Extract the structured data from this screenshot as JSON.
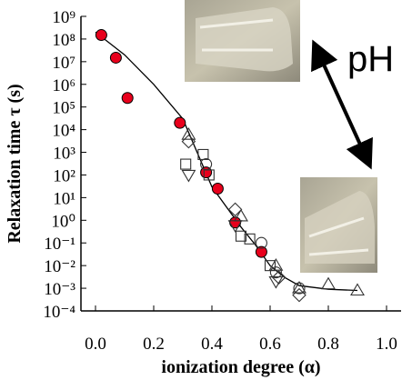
{
  "chart_data": {
    "type": "scatter",
    "xlabel": "ionization degree (α)",
    "ylabel": "Relaxation time τ (s)",
    "xlim": [
      -0.05,
      1.05
    ],
    "xticks": [
      {
        "value": 0,
        "label": "0.0"
      },
      0.2,
      0.4,
      0.6,
      0.8,
      {
        "value": 1,
        "label": "1.0"
      }
    ],
    "ylim": [
      0.0001,
      1000000000
    ],
    "log_y": true,
    "yticks": [
      {
        "value": 1000000000,
        "label": "10⁹"
      },
      {
        "value": 100000000,
        "label": "10⁸"
      },
      {
        "value": 10000000,
        "label": "10⁷"
      },
      {
        "value": 1000000,
        "label": "10⁶"
      },
      {
        "value": 100000,
        "label": "10⁵"
      },
      {
        "value": 10000,
        "label": "10⁴"
      },
      {
        "value": 1000,
        "label": "10³"
      },
      {
        "value": 100,
        "label": "10²"
      },
      {
        "value": 10,
        "label": "10¹"
      },
      {
        "value": 1,
        "label": "10⁰"
      },
      {
        "value": 0.1,
        "label": "10⁻¹"
      },
      {
        "value": 0.01,
        "label": "10⁻²"
      },
      {
        "value": 0.001,
        "label": "10⁻³"
      },
      {
        "value": 0.0001,
        "label": "10⁻⁴"
      }
    ],
    "annotations": [
      "pH"
    ],
    "fit_line": {
      "color": "#000000",
      "x": [
        0.0,
        0.1,
        0.2,
        0.3,
        0.4,
        0.5,
        0.55,
        0.6,
        0.65,
        0.7,
        0.8,
        0.9
      ],
      "values": [
        200000000,
        20000000,
        1000000,
        30000,
        30,
        0.5,
        0.08,
        0.01,
        0.003,
        0.0013,
        0.0009,
        0.0008
      ]
    },
    "series": [
      {
        "marker": "circle",
        "color": "#e8001c",
        "filled": true,
        "x": [
          0.02,
          0.07,
          0.11,
          0.29,
          0.38,
          0.42,
          0.48,
          0.57
        ],
        "values": [
          150000000,
          15000000,
          250000,
          20000,
          130,
          25,
          0.8,
          0.04
        ]
      },
      {
        "marker": "triangle-up",
        "color": "#333333",
        "filled": false,
        "x": [
          0.32,
          0.5,
          0.62,
          0.7,
          0.8,
          0.9
        ],
        "values": [
          6000,
          1.5,
          0.01,
          0.001,
          0.0015,
          0.0008
        ]
      },
      {
        "marker": "square",
        "color": "#333333",
        "filled": false,
        "x": [
          0.31,
          0.37,
          0.39,
          0.5,
          0.53,
          0.6
        ],
        "values": [
          300,
          800,
          100,
          0.2,
          0.15,
          0.01
        ]
      },
      {
        "marker": "circle",
        "color": "#333333",
        "filled": false,
        "x": [
          0.38,
          0.57,
          0.62,
          0.7
        ],
        "values": [
          300,
          0.1,
          0.005,
          0.001
        ]
      },
      {
        "marker": "diamond",
        "color": "#333333",
        "filled": false,
        "x": [
          0.32,
          0.48,
          0.63,
          0.7
        ],
        "values": [
          3000,
          3,
          0.003,
          0.0005
        ]
      },
      {
        "marker": "triangle-down",
        "color": "#333333",
        "filled": false,
        "x": [
          0.32,
          0.48,
          0.62
        ],
        "values": [
          100,
          0.6,
          0.002
        ]
      }
    ]
  }
}
